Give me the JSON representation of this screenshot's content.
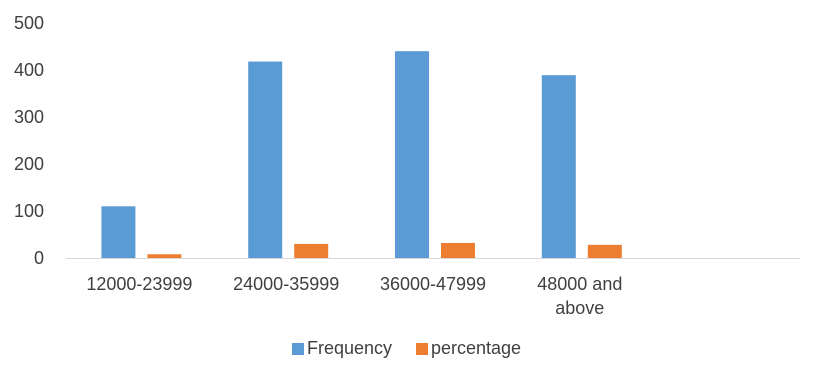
{
  "chart_data": {
    "type": "bar",
    "title": "",
    "xlabel": "",
    "ylabel": "",
    "categories": [
      "12000-23999",
      "24000-35999",
      "36000-47999",
      "48000 and above"
    ],
    "category_lines": [
      [
        "12000-23999"
      ],
      [
        "24000-35999"
      ],
      [
        "36000-47999"
      ],
      [
        "48000 and",
        "above"
      ]
    ],
    "series": [
      {
        "name": "Frequency",
        "color": "#5B9BD5",
        "values": [
          110,
          418,
          440,
          389
        ]
      },
      {
        "name": "percentage",
        "color": "#ED7D31",
        "values": [
          8,
          30,
          32,
          28
        ]
      }
    ],
    "ylim": [
      0,
      500
    ],
    "yticks": [
      0,
      100,
      200,
      300,
      400,
      500
    ],
    "grid": false,
    "legend_position": "bottom",
    "extra_empty_slots": 1
  }
}
